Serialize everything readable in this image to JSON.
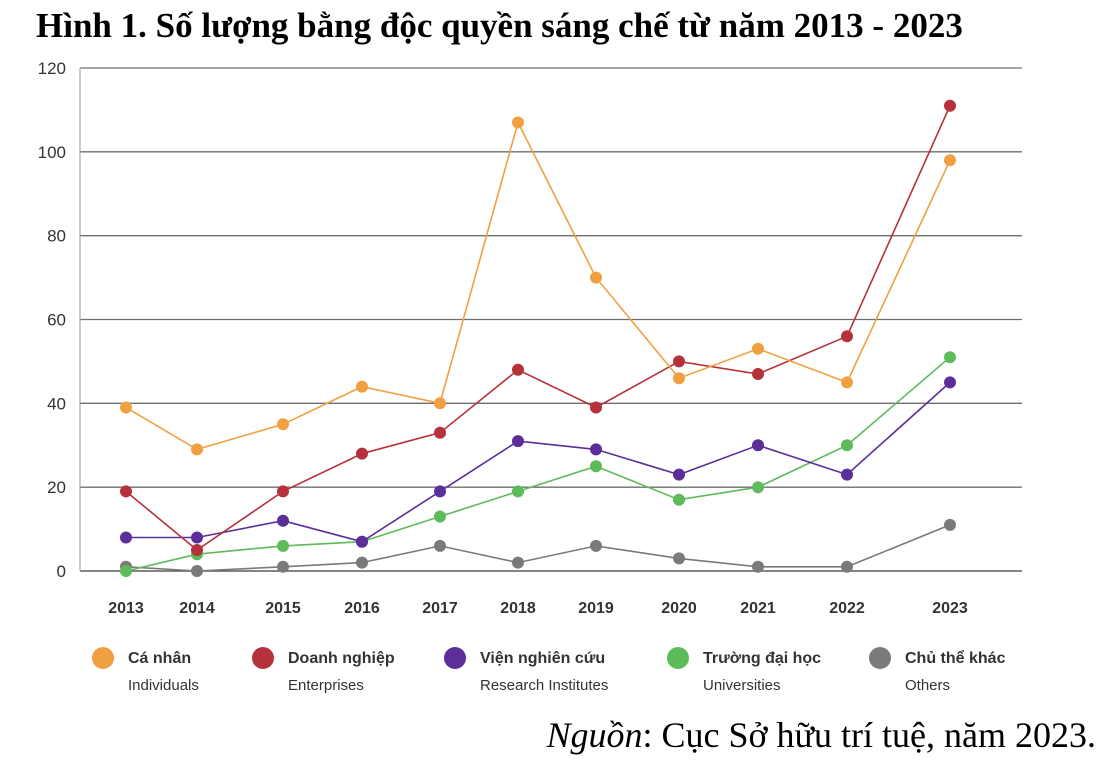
{
  "title": "Hình 1. Số lượng bằng độc quyền sáng chế  từ năm 2013 - 2023",
  "source": {
    "label": "Nguồn",
    "text": ": Cục Sở hữu trí tuệ, năm 2023."
  },
  "chart_data": {
    "type": "line",
    "title": "Hình 1. Số lượng bằng độc quyền sáng chế  từ năm 2013 - 2023",
    "xlabel": "",
    "ylabel": "",
    "categories": [
      "2013",
      "2014",
      "2015",
      "2016",
      "2017",
      "2018",
      "2019",
      "2020",
      "2021",
      "2022",
      "2023"
    ],
    "ylim": [
      0,
      120
    ],
    "yticks": [
      0,
      20,
      40,
      60,
      80,
      100,
      120
    ],
    "grid": true,
    "legend_position": "bottom",
    "series": [
      {
        "name": "Cá nhân",
        "name_en": "Individuals",
        "color": "#F0A040",
        "values": [
          39,
          29,
          35,
          44,
          40,
          107,
          70,
          46,
          53,
          45,
          98
        ]
      },
      {
        "name": "Doanh nghiệp",
        "name_en": "Enterprises",
        "color": "#B5323A",
        "values": [
          19,
          5,
          19,
          28,
          33,
          48,
          39,
          50,
          47,
          56,
          111
        ]
      },
      {
        "name": "Viện nghiên cứu",
        "name_en": "Research Institutes",
        "color": "#5B2E9A",
        "values": [
          8,
          8,
          12,
          7,
          19,
          31,
          29,
          23,
          30,
          23,
          45
        ]
      },
      {
        "name": "Trường đại học",
        "name_en": "Universities",
        "color": "#5DBB5A",
        "values": [
          0,
          4,
          6,
          7,
          13,
          19,
          25,
          17,
          20,
          30,
          51
        ]
      },
      {
        "name": "Chủ thể khác",
        "name_en": "Others",
        "color": "#7A7A7A",
        "values": [
          1,
          0,
          1,
          2,
          6,
          2,
          6,
          3,
          1,
          1,
          11
        ]
      }
    ]
  }
}
